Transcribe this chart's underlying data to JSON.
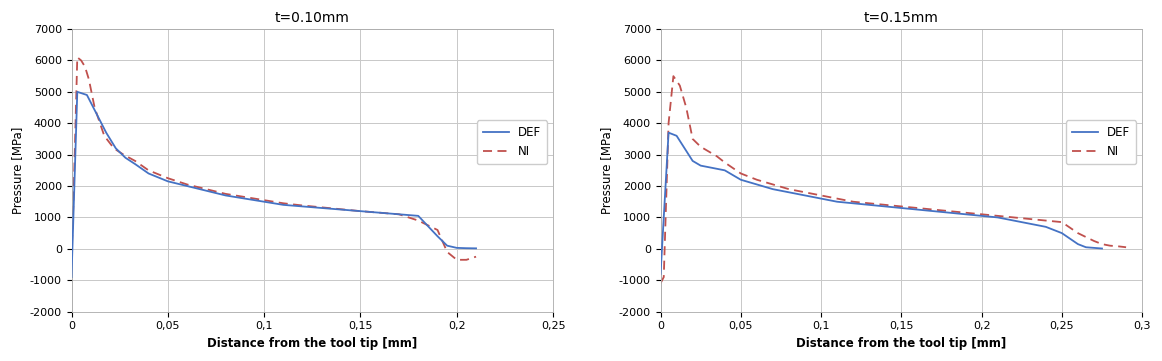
{
  "plot1": {
    "title": "t=0.10mm",
    "xlabel": "Distance from the tool tip [mm]",
    "ylabel": "Pressure [MPa]",
    "ylim": [
      -2000,
      7000
    ],
    "xlim": [
      0,
      0.25
    ],
    "yticks": [
      -2000,
      -1000,
      0,
      1000,
      2000,
      3000,
      4000,
      5000,
      6000,
      7000
    ],
    "xticks": [
      0,
      0.05,
      0.1,
      0.15,
      0.2,
      0.25
    ],
    "xtick_labels": [
      "0",
      "0,05",
      "0,1",
      "0,15",
      "0,2",
      "0,25"
    ],
    "def_x": [
      0.0,
      0.003,
      0.008,
      0.013,
      0.018,
      0.023,
      0.028,
      0.033,
      0.04,
      0.05,
      0.06,
      0.07,
      0.08,
      0.09,
      0.1,
      0.11,
      0.12,
      0.13,
      0.14,
      0.15,
      0.16,
      0.17,
      0.18,
      0.19,
      0.195,
      0.2,
      0.205,
      0.21
    ],
    "def_y": [
      -900,
      5000,
      4900,
      4300,
      3700,
      3200,
      2900,
      2700,
      2400,
      2150,
      2000,
      1850,
      1700,
      1600,
      1500,
      1400,
      1350,
      1300,
      1250,
      1200,
      1150,
      1100,
      1050,
      400,
      100,
      30,
      20,
      15
    ],
    "ni_x": [
      0.0,
      0.001,
      0.003,
      0.005,
      0.007,
      0.009,
      0.012,
      0.017,
      0.022,
      0.027,
      0.033,
      0.04,
      0.05,
      0.06,
      0.07,
      0.08,
      0.09,
      0.1,
      0.11,
      0.12,
      0.13,
      0.14,
      0.15,
      0.16,
      0.17,
      0.18,
      0.185,
      0.19,
      0.195,
      0.2,
      0.205,
      0.21
    ],
    "ni_y": [
      -300,
      1500,
      6100,
      6000,
      5800,
      5400,
      4500,
      3600,
      3200,
      3000,
      2800,
      2500,
      2250,
      2050,
      1900,
      1750,
      1650,
      1550,
      1450,
      1380,
      1320,
      1260,
      1200,
      1150,
      1100,
      900,
      750,
      600,
      -100,
      -350,
      -350,
      -250
    ]
  },
  "plot2": {
    "title": "t=0.15mm",
    "xlabel": "Distance from the tool tip [mm]",
    "ylabel": "Pressure [MPa]",
    "ylim": [
      -2000,
      7000
    ],
    "xlim": [
      0,
      0.3
    ],
    "yticks": [
      -2000,
      -1000,
      0,
      1000,
      2000,
      3000,
      4000,
      5000,
      6000,
      7000
    ],
    "xticks": [
      0,
      0.05,
      0.1,
      0.15,
      0.2,
      0.25,
      0.3
    ],
    "xtick_labels": [
      "0",
      "0,05",
      "0,1",
      "0,15",
      "0,2",
      "0,25",
      "0,3"
    ],
    "def_x": [
      0.0,
      0.005,
      0.01,
      0.015,
      0.02,
      0.025,
      0.03,
      0.035,
      0.04,
      0.05,
      0.06,
      0.07,
      0.08,
      0.09,
      0.1,
      0.11,
      0.12,
      0.13,
      0.14,
      0.15,
      0.16,
      0.17,
      0.18,
      0.19,
      0.2,
      0.21,
      0.22,
      0.23,
      0.24,
      0.25,
      0.26,
      0.265,
      0.27,
      0.275
    ],
    "def_y": [
      -800,
      3700,
      3600,
      3200,
      2800,
      2650,
      2600,
      2550,
      2500,
      2200,
      2050,
      1900,
      1800,
      1700,
      1600,
      1500,
      1450,
      1400,
      1350,
      1300,
      1250,
      1200,
      1150,
      1100,
      1050,
      1000,
      900,
      800,
      700,
      500,
      150,
      50,
      30,
      10
    ],
    "ni_x": [
      0.0,
      0.002,
      0.005,
      0.008,
      0.012,
      0.016,
      0.02,
      0.025,
      0.03,
      0.035,
      0.04,
      0.05,
      0.06,
      0.07,
      0.08,
      0.09,
      0.1,
      0.11,
      0.12,
      0.13,
      0.14,
      0.15,
      0.16,
      0.17,
      0.18,
      0.19,
      0.2,
      0.21,
      0.22,
      0.23,
      0.24,
      0.25,
      0.26,
      0.27,
      0.275,
      0.28,
      0.285,
      0.29
    ],
    "ni_y": [
      -1100,
      -900,
      4000,
      5500,
      5200,
      4500,
      3500,
      3250,
      3100,
      2950,
      2750,
      2400,
      2200,
      2050,
      1900,
      1800,
      1700,
      1600,
      1500,
      1450,
      1400,
      1350,
      1300,
      1250,
      1200,
      1150,
      1100,
      1050,
      1000,
      950,
      900,
      850,
      500,
      250,
      150,
      100,
      80,
      50
    ]
  },
  "def_color": "#4472c4",
  "ni_color": "#c0504d",
  "bg_color": "#ffffff",
  "plot_bg_color": "#ffffff",
  "grid_color": "#c8c8c8",
  "title_fontsize": 10,
  "label_fontsize": 8.5,
  "tick_fontsize": 8,
  "legend_fontsize": 8.5,
  "line_width": 1.3
}
